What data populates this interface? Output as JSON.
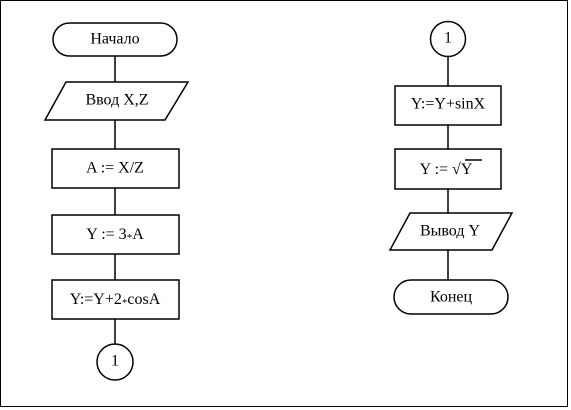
{
  "flowchart": {
    "left": {
      "start": "Начало",
      "input": "Ввод X,Z",
      "step1": "A := X/Z",
      "step2_prefix": "Y := 3",
      "step2_suffix": "A",
      "step3_prefix": "Y:=Y+2",
      "step3_suffix": "cosA",
      "connector": "1"
    },
    "right": {
      "connector": "1",
      "step1": "Y:=Y+sinX",
      "step2_prefix": "Y := ",
      "step2_radicand": "Y",
      "output": "Вывод Y",
      "end": "Конец"
    },
    "glyphs": {
      "multiply": "*",
      "sqrt": "√"
    }
  }
}
